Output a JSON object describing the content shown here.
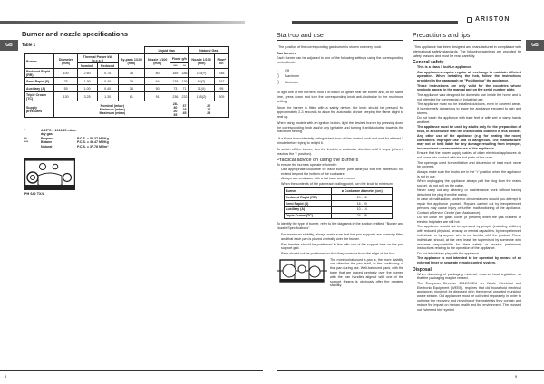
{
  "brand": "ARISTON",
  "lang_tab": "GB",
  "left": {
    "title": "Burner and nozzle specifications",
    "table_label": "Table 1",
    "table": {
      "group_liquid": "Liquid Gas",
      "group_natural": "Natural Gas",
      "headers": {
        "burner": "Burner",
        "diameter": "Diameter (mm)",
        "thermal": "Thermal Power kW (p.c.s.*)",
        "nominal": "Nominal",
        "reduced": "Reduced",
        "bypass": "By-pass 1/100 (mm)",
        "nozzle_lg": "Nozzle 1/100 (mm)",
        "flow_lg": "Flow* g/h",
        "flow_lg_a": "***",
        "flow_lg_b": "**",
        "nozzle_ng": "Nozzle 1/100 (mm)",
        "flow_ng": "Flow* l/h"
      },
      "rows": [
        [
          "Reduced Rapid (RR)",
          "100",
          "2.60",
          "0.75",
          "38",
          "80",
          "189",
          "186",
          "119(Y)",
          "248"
        ],
        [
          "Semi Rapid (S)",
          "75",
          "1.90",
          "0.40",
          "28",
          "64",
          "138",
          "136",
          "94(Z)",
          "167"
        ],
        [
          "Auxiliary (A)",
          "55",
          "1.00",
          "0.40",
          "28",
          "50",
          "73",
          "71",
          "71(X)",
          "95"
        ],
        [
          "Triple Crown (TC)",
          "130",
          "3.25",
          "1.30",
          "61",
          "91",
          "236",
          "232",
          "135(Z)",
          "309"
        ]
      ],
      "supply_label": "Supply pressures",
      "supply_items": [
        "Nominal (mbar)",
        "Minimum (mbar)",
        "Maximum (mbar)"
      ],
      "supply_lg_a": [
        "28-30",
        "20",
        "35"
      ],
      "supply_lg_b": [
        "37",
        "25",
        "45"
      ],
      "supply_ng": [
        "20",
        "17",
        "25"
      ]
    },
    "footnotes": [
      [
        "*",
        "A 15°C e 1013,25 mbar-dry gas",
        ""
      ],
      [
        "**",
        "Propane",
        "P.C.S. = 50.37 MJ/Kg"
      ],
      [
        "***",
        "Butane",
        "P.C.S. = 49.47 MJ/Kg"
      ],
      [
        "",
        "Natural",
        "P.C.S. = 37.78 MJ/m³"
      ]
    ],
    "model": "PH 642 TX/A",
    "page_number": "8"
  },
  "middle": {
    "title": "Start-up and use",
    "intro": "! The position of the corresponding gas burner is shown on every knob.",
    "gas_burners_title": "Gas burners",
    "gas_burners_text": "Each burner can be adjusted to one of the following settings using the corresponding control knob:",
    "legend": [
      "Off",
      "Maximum",
      "Minimum"
    ],
    "paras": [
      "To light one of the burners, hold a lit match or lighter near the burner and, at the same time, press down and turn the corresponding knob anti-clockwise to the maximum setting.",
      "Since the burner is fitted with a safety device, the knob should be pressed for approximately 2-3 seconds to allow the automatic device keeping the flame alight to heat up.",
      "When using models with an ignition button, light the desired burner by pressing down the corresponding knob and/or any ignitable and turning it anticlockwise towards the maximum setting.",
      "! If a flame is accidentally extinguished, turn off the control knob and wait for at least 1 minute before trying to relight it.",
      "To switch off the burner, turn the knob in a clockwise direction until it stops (when it reaches the '•' position)."
    ],
    "advice_title": "Practical advice on using the burners",
    "advice_intro": "To ensure the burners operate efficiently:",
    "advice_bullets": [
      "Use appropriate cookware for each burner (see table) so that the flames do not extend beyond the bottom of the cookware.",
      "Always use cookware with a flat base and a cover.",
      "When the contents of the pan reach boiling point, turn the knob to minimum."
    ],
    "cook_table": {
      "headers": [
        "Burner",
        "ø Cookware diameter (cm)"
      ],
      "rows": [
        [
          "Reduced Rapid (RR)",
          "24 - 26"
        ],
        [
          "Semi Rapid (S)",
          "16 - 20"
        ],
        [
          "Auxiliary (A)",
          "10 - 14"
        ],
        [
          "Triple Crown (TC)",
          "24 - 26"
        ]
      ]
    },
    "identify": "To identify the type of burner, refer to the diagrams in the section entitled, \"Burner and Nozzle Specifications\".",
    "stability_bullets": [
      "For maximum stability, always make sure that the pan supports are correctly fitted and that each pan is placed centrally over the burner.",
      "Pan handles should be positioned in line with one of the support bars on the pan support grid.",
      "Pans should not be positioned so that they protrude from the edge of the hob."
    ],
    "stability_text": "The more unbalanced a pan is, the more stability can often be the pan itself, or the positioning of that pan during use. Well-balanced pans, with the base that are placed centrally over the burner, with the pan handles aligned with one of the support fingers is obviously offer the greatest stability."
  },
  "right": {
    "title": "Precautions and tips",
    "intro": "! This appliance has been designed and manufactured in compliance with international safety standards. The following warnings are provided for safety reasons and must be read carefully.",
    "general_title": "General safety",
    "general_bullets": [
      {
        "t": "This is a class 3 built-in appliance.",
        "b": true
      },
      {
        "t": "Gas appliances require regular air exchange to maintain efficient operation. When installing the hob, follow the instructions provided in the paragraph on \"Positioning\" the appliance.",
        "b": true
      },
      {
        "t": "These instructions are only valid for the countries whose symbols appear in the manual and on the serial number plate.",
        "b": true
      },
      {
        "t": "The appliance was designed for domestic use inside the home and is not intended for commercial or industrial use.",
        "b": false
      },
      {
        "t": "The appliance must not be installed outdoors, even in covered areas. It is extremely dangerous to leave the appliance exposed to rain and storms.",
        "b": false
      },
      {
        "t": "Do not touch the appliance with bare feet or with wet or damp hands and feet.",
        "b": false
      },
      {
        "t": "The appliance must be used by adults only for the preparation of food, in accordance with the instructions outlined in this booklet. Any other use of the appliance (e.g. for heating the room) constitutes improper use and is dangerous. The manufacturer may not be held liable for any damage resulting from improper, incorrect and unreasonable use of the appliance.",
        "b": true
      },
      {
        "t": "Ensure that the power supply cables of other electrical appliances do not come into contact with the hot parts of the oven.",
        "b": false
      },
      {
        "t": "The openings used for ventilation and dispersion of heat must never be covered.",
        "b": false
      },
      {
        "t": "Always make sure the knobs are in the \"•\" position when the appliance is not in use.",
        "b": false
      },
      {
        "t": "When unplugging the appliance always pull the plug from the mains socket, do not pull on the cable.",
        "b": false
      },
      {
        "t": "Never carry out any cleaning or maintenance work without having detached the plug from the mains.",
        "b": false
      },
      {
        "t": "In case of malfunction, under no circumstances should you attempt to repair the appliance yourself. Repairs carried out by inexperienced persons may cause injury or further malfunctioning of the appliance. Contact a Service Centre (see Assistance).",
        "b": false
      },
      {
        "t": "Do not close the glass cover (if present) when the gas burners or electric hotplates are still hot.",
        "b": false
      },
      {
        "t": "The appliance should not be operated by people (including children) with reduced physical, sensory or mental capacities, by inexperienced individuals or by anyone who is not familiar with the product. These individuals should, at the very least, be supervised by someone who assumes responsibility for their safety or receive preliminary instructions relating to the operation of the appliance.",
        "b": false
      },
      {
        "t": "Do not let children play with the appliance.",
        "b": false
      },
      {
        "t": "The appliance is not intended to be operated by means of an external timer or separate remote-control system.",
        "b": true
      }
    ],
    "disposal_title": "Disposal",
    "disposal_bullets": [
      {
        "t": "When disposing of packaging material: observe local legislation so that the packaging may be reused.",
        "b": false
      },
      {
        "t": "The European Directive 2012/19/EU on Waste Electrical and Electronic Equipment (WEEE), requires that old household electrical appliances must not be disposed of in the normal unsorted municipal waste stream. Old appliances must be collected separately in order to optimise the recovery and recycling of the materials they contain and reduce the impact on human health and the environment. The crossed out \"wheeled bin\" symbol",
        "b": false
      }
    ],
    "page_number": "9"
  }
}
